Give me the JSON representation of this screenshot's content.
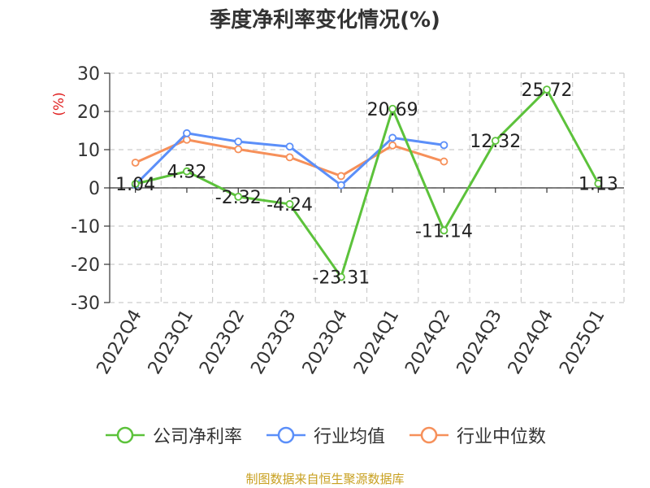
{
  "chart_data": {
    "type": "line",
    "title": "季度净利率变化情况(%)",
    "ylabel": "(%)",
    "xlabel": "",
    "categories": [
      "2022Q4",
      "2023Q1",
      "2023Q2",
      "2023Q3",
      "2023Q4",
      "2024Q1",
      "2024Q2",
      "2024Q3",
      "2024Q4",
      "2025Q1"
    ],
    "ylim": [
      -30,
      30
    ],
    "yticks": [
      30,
      20,
      10,
      0,
      -10,
      -20,
      -30
    ],
    "grid": true,
    "legend_position": "bottom",
    "series": [
      {
        "name": "公司净利率",
        "color": "#5cc23b",
        "values": [
          1.04,
          4.32,
          -2.32,
          -4.24,
          -23.31,
          20.69,
          -11.14,
          12.32,
          25.72,
          1.13
        ],
        "labels": [
          "1.04",
          "4.32",
          "-2.32",
          "-4.24",
          "-23.31",
          "20.69",
          "-11.14",
          "12.32",
          "25.72",
          "1.13"
        ]
      },
      {
        "name": "行业均值",
        "color": "#5b8ff9",
        "values": [
          0.8,
          14.3,
          12.1,
          10.8,
          0.7,
          13.1,
          11.2,
          null,
          null,
          null
        ]
      },
      {
        "name": "行业中位数",
        "color": "#f6905a",
        "values": [
          6.6,
          12.6,
          10.1,
          8.0,
          3.1,
          11.1,
          6.9,
          null,
          null,
          null
        ]
      }
    ]
  },
  "source": "制图数据来自恒生聚源数据库"
}
